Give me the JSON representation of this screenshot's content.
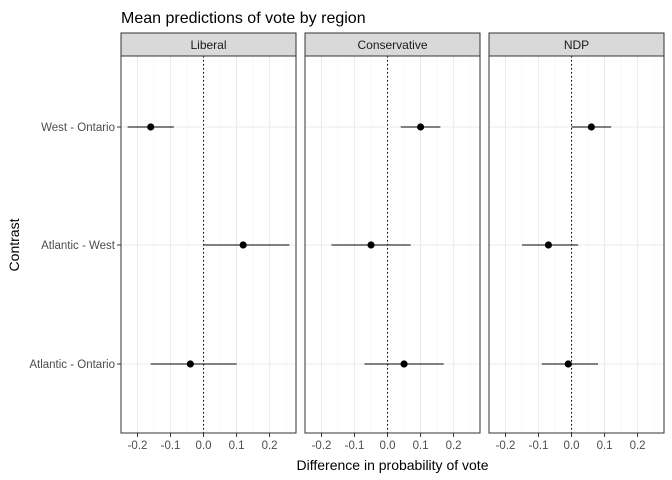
{
  "chart_data": {
    "type": "scatter",
    "subtype": "faceted-pointrange",
    "title": "Mean predictions of vote by region",
    "xlabel": "Difference in probability of vote",
    "ylabel": "Contrast",
    "xlim": [
      -0.25,
      0.28
    ],
    "xticks": [
      -0.2,
      -0.1,
      0.0,
      0.1,
      0.2
    ],
    "xtick_labels": [
      "-0.2",
      "-0.1",
      "0.0",
      "0.1",
      "0.2"
    ],
    "categories": [
      "West - Ontario",
      "Atlantic - West",
      "Atlantic - Ontario"
    ],
    "reference_line": 0,
    "grid": true,
    "panels": [
      {
        "name": "Liberal",
        "points": [
          {
            "contrast": "West - Ontario",
            "estimate": -0.16,
            "low": -0.23,
            "high": -0.09
          },
          {
            "contrast": "Atlantic - West",
            "estimate": 0.12,
            "low": 0.0,
            "high": 0.26
          },
          {
            "contrast": "Atlantic - Ontario",
            "estimate": -0.04,
            "low": -0.16,
            "high": 0.1
          }
        ]
      },
      {
        "name": "Conservative",
        "points": [
          {
            "contrast": "West - Ontario",
            "estimate": 0.1,
            "low": 0.04,
            "high": 0.16
          },
          {
            "contrast": "Atlantic - West",
            "estimate": -0.05,
            "low": -0.17,
            "high": 0.07
          },
          {
            "contrast": "Atlantic - Ontario",
            "estimate": 0.05,
            "low": -0.07,
            "high": 0.17
          }
        ]
      },
      {
        "name": "NDP",
        "points": [
          {
            "contrast": "West - Ontario",
            "estimate": 0.06,
            "low": 0.0,
            "high": 0.12
          },
          {
            "contrast": "Atlantic - West",
            "estimate": -0.07,
            "low": -0.15,
            "high": 0.02
          },
          {
            "contrast": "Atlantic - Ontario",
            "estimate": -0.01,
            "low": -0.09,
            "high": 0.08
          }
        ]
      }
    ]
  },
  "colors": {
    "strip_fill": "#d9d9d9",
    "panel_border": "#333333",
    "grid_major": "#ebebeb",
    "grid_minor": "#f5f5f5",
    "point": "#000000",
    "tick_text": "#4d4d4d"
  }
}
